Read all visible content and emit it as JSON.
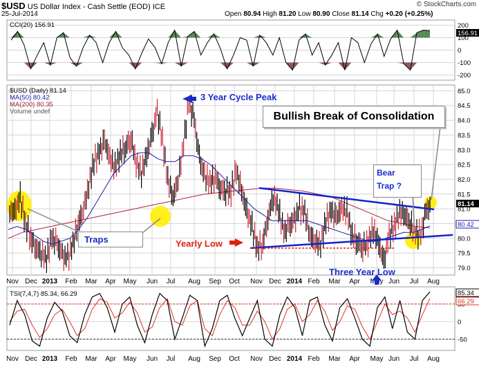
{
  "header": {
    "symbol": "$USD",
    "name": "US Dollar Index - Cash Settle (EOD)",
    "exchange": "ICE",
    "date": "25-Jul-2014",
    "open_label": "Open",
    "open": "80.94",
    "high_label": "High",
    "high": "81.20",
    "low_label": "Low",
    "low": "80.90",
    "close_label": "Close",
    "close": "81.14",
    "chg_label": "Chg",
    "chg": "+0.20 (+0.25%)",
    "brand": "© StockCharts.com"
  },
  "colors": {
    "price": "#000000",
    "down_bar": "#cc2233",
    "ma50": "#1a1aaa",
    "ma200": "#aa2244",
    "trendline": "#1122cc",
    "highlight": "#ffee00",
    "cci_pos": "#5a8a5a",
    "cci_neg": "#8a5a5a",
    "tsi": "#000000",
    "tsi_signal": "#dd3322",
    "grid": "#d4d4d4",
    "callout_blue": "#1a2ccc",
    "callout_red": "#dd2211"
  },
  "chart_data": [
    {
      "type": "line",
      "panel": "cci",
      "legend": "CCI(20) 156.91",
      "last_value": "156.91",
      "y_ticks": [
        "200",
        "100",
        "0",
        "-100",
        "-200"
      ],
      "ylim": [
        -230,
        230
      ],
      "values": [
        80,
        150,
        40,
        -150,
        -40,
        60,
        -120,
        100,
        140,
        -60,
        -130,
        20,
        120,
        60,
        -100,
        60,
        150,
        20,
        -40,
        -150,
        -20,
        90,
        20,
        -110,
        60,
        160,
        -130,
        110,
        150,
        -40,
        60,
        130,
        10,
        -150,
        -40,
        100,
        80,
        -130,
        120,
        60,
        -40,
        100,
        -100,
        -160,
        80,
        130,
        -40,
        60,
        -120,
        -40,
        60,
        -160,
        100,
        60,
        -100,
        50,
        130,
        -50,
        90,
        160,
        -110,
        -160,
        140,
        160,
        157
      ]
    },
    {
      "type": "candlestick",
      "panel": "price",
      "legend": [
        "$USD (Daily) 81.14",
        "MA(50) 80.42",
        "MA(200) 80.35",
        "Volume undef"
      ],
      "last_labels": [
        "81.14",
        "80.42"
      ],
      "y_ticks": [
        "85.0",
        "84.5",
        "84.0",
        "83.5",
        "83.0",
        "82.5",
        "82.0",
        "81.5",
        "81.0",
        "80.5",
        "80.0",
        "79.5",
        "79.0"
      ],
      "ylim": [
        78.8,
        85.15
      ],
      "x_ticks": [
        "Nov",
        "Dec",
        "2013",
        "Feb",
        "Mar",
        "Apr",
        "May",
        "Jun",
        "Jul",
        "Aug",
        "Sep",
        "Oct",
        "Nov",
        "Dec",
        "2014",
        "Feb",
        "Mar",
        "Apr",
        "May",
        "Jun",
        "Jul",
        "Aug"
      ],
      "close": [
        80.9,
        81.4,
        80.5,
        80.0,
        79.7,
        79.5,
        79.3,
        80.0,
        79.8,
        79.4,
        79.3,
        79.8,
        80.5,
        81.0,
        81.8,
        82.6,
        82.9,
        83.3,
        82.7,
        82.4,
        82.9,
        83.1,
        83.4,
        82.6,
        82.2,
        82.8,
        83.5,
        84.3,
        83.3,
        82.0,
        81.4,
        82.0,
        83.2,
        84.6,
        84.0,
        82.7,
        82.1,
        81.9,
        82.1,
        81.7,
        81.6,
        81.6,
        82.3,
        81.6,
        80.9,
        80.4,
        79.7,
        79.8,
        80.7,
        81.4,
        81.0,
        80.2,
        80.4,
        80.6,
        81.0,
        80.9,
        80.1,
        79.9,
        79.8,
        80.6,
        80.9,
        80.7,
        81.0,
        80.9,
        80.1,
        79.9,
        79.7,
        79.9,
        80.3,
        79.8,
        79.2,
        80.1,
        80.4,
        80.9,
        80.8,
        80.5,
        80.2,
        80.1,
        80.9,
        81.14
      ],
      "ma50": [
        80.3,
        80.4,
        80.3,
        80.1,
        79.9,
        79.8,
        79.9,
        80.0,
        80.3,
        80.7,
        81.2,
        81.7,
        82.2,
        82.5,
        82.8,
        82.9,
        82.9,
        82.7,
        82.6,
        82.6,
        82.8,
        82.8,
        82.7,
        82.5,
        82.2,
        81.9,
        81.6,
        81.3,
        81.0,
        80.8,
        80.6,
        80.6,
        80.6,
        80.6,
        80.6,
        80.5,
        80.4,
        80.3,
        80.2,
        80.1,
        80.0,
        79.9,
        79.9,
        80.0,
        80.1,
        80.2,
        80.2,
        80.3,
        80.42
      ],
      "ma200": [
        80.0,
        80.2,
        80.3,
        80.4,
        80.5,
        80.6,
        80.7,
        80.8,
        80.9,
        81.0,
        81.1,
        81.2,
        81.3,
        81.4,
        81.5,
        81.55,
        81.6,
        81.65,
        81.7,
        81.7,
        81.65,
        81.6,
        81.5,
        81.4,
        81.2,
        81.0,
        80.8,
        80.6,
        80.5,
        80.4,
        80.35
      ]
    },
    {
      "type": "line",
      "panel": "tsi",
      "legend": "TSI(7,4,7) 85.34, 66.29",
      "last_labels": [
        "85.34",
        "66.29"
      ],
      "y_ticks": [
        "50",
        "0",
        "-50"
      ],
      "ylim": [
        -78,
        95
      ],
      "series": [
        {
          "values": [
            -10,
            60,
            20,
            -55,
            -70,
            10,
            55,
            30,
            -40,
            -60,
            20,
            70,
            80,
            40,
            -30,
            50,
            70,
            -10,
            -60,
            20,
            80,
            60,
            -50,
            10,
            75,
            60,
            -70,
            -20,
            60,
            75,
            10,
            -40,
            10,
            60,
            -50,
            -70,
            20,
            70,
            40,
            -40,
            60,
            70,
            -10,
            -55,
            40,
            65,
            10,
            -50,
            -70,
            40,
            70,
            -20,
            60,
            -30,
            -50,
            60,
            85
          ]
        },
        {
          "values": [
            0,
            30,
            35,
            -10,
            -45,
            -20,
            20,
            35,
            0,
            -40,
            -20,
            35,
            65,
            55,
            10,
            25,
            55,
            25,
            -30,
            -15,
            40,
            65,
            0,
            -10,
            45,
            60,
            -20,
            -40,
            20,
            60,
            40,
            -10,
            -10,
            30,
            0,
            -50,
            -20,
            35,
            50,
            0,
            20,
            60,
            30,
            -25,
            0,
            45,
            35,
            -15,
            -50,
            0,
            50,
            20,
            30,
            10,
            -30,
            20,
            66
          ]
        }
      ]
    }
  ],
  "annotations": {
    "cycle_peak": "3 Year Cycle Peak",
    "bullish_break": "Bullish Break of Consolidation",
    "bear_trap": "Bear\nTrap ?",
    "traps": "Traps",
    "yearly_low": "Yearly Low",
    "three_year_low": "Three Year Low"
  }
}
